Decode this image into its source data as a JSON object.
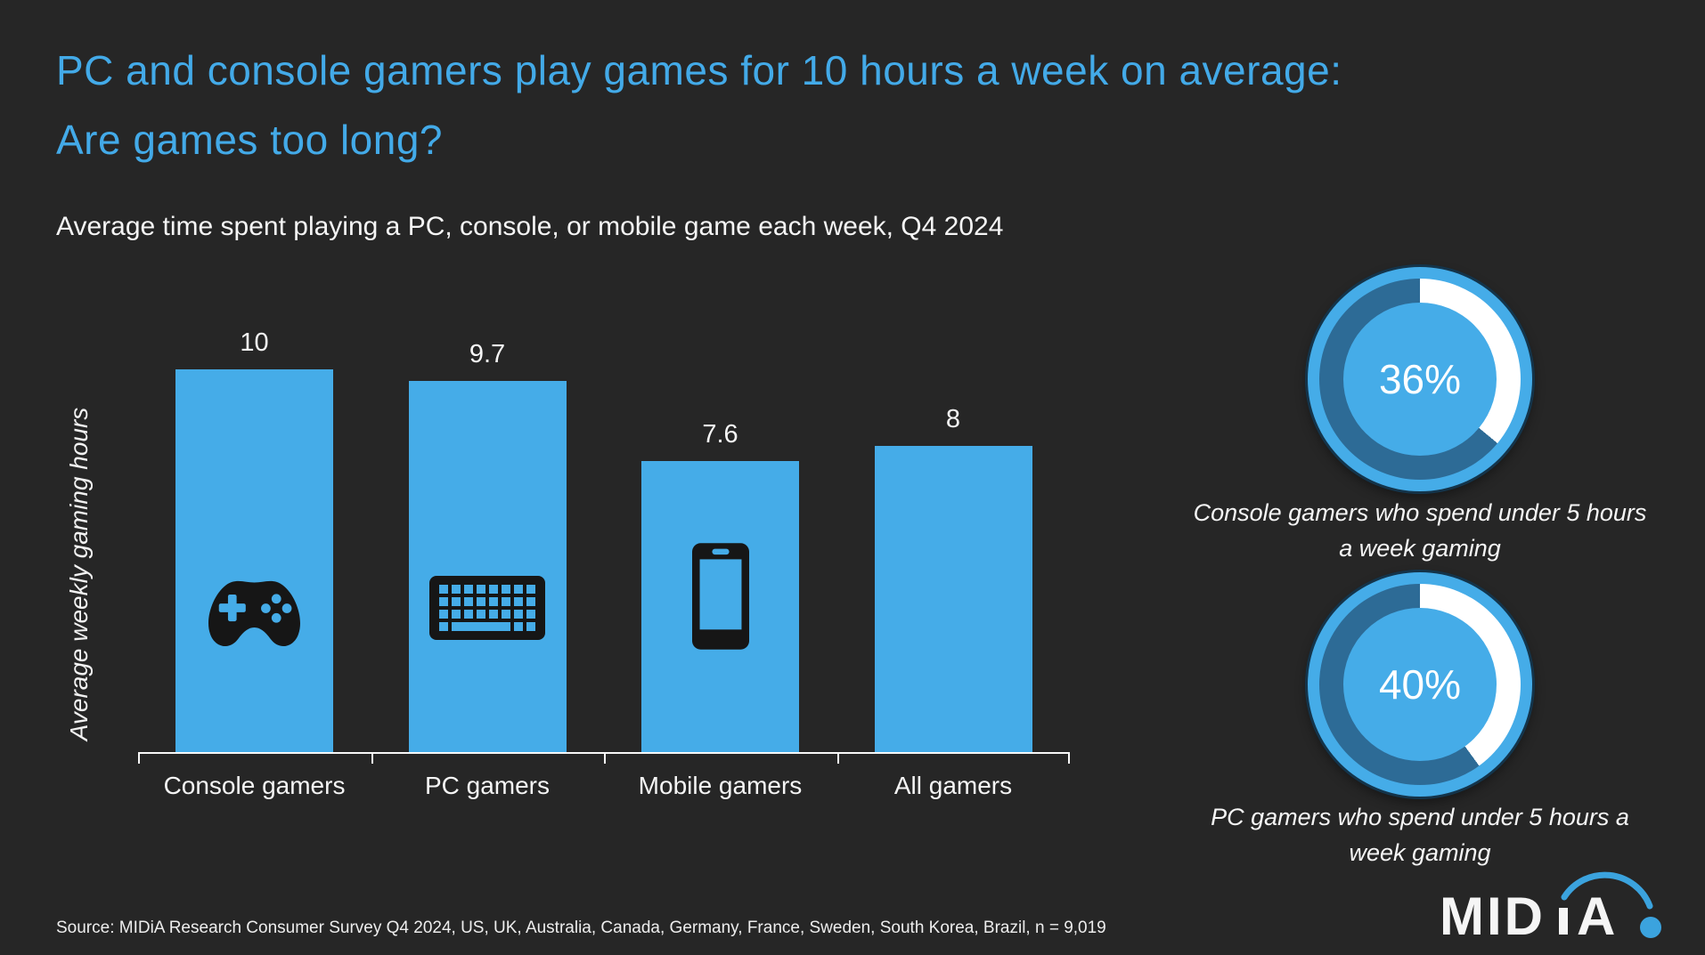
{
  "page": {
    "background": "#262626",
    "accent_blue": "#45ACE8",
    "donut_track_blue": "#2D6B96",
    "text_white": "#F5F5F5"
  },
  "title": {
    "line1": "PC and console gamers play games for 10 hours a week on average:",
    "line2": "Are games too long?"
  },
  "subtitle": "Average time spent playing a PC, console, or mobile game each week, Q4 2024",
  "chart_data": {
    "type": "bar",
    "title": "Average time spent playing a PC, console, or mobile game each week, Q4 2024",
    "categories": [
      "Console gamers",
      "PC gamers",
      "Mobile gamers",
      "All gamers"
    ],
    "values": [
      10,
      9.7,
      7.6,
      8
    ],
    "value_labels": [
      "10",
      "9.7",
      "7.6",
      "8"
    ],
    "xlabel": "",
    "ylabel": "Average weekly gaming hours",
    "ylim": [
      0,
      10
    ],
    "grid": false,
    "legend": false,
    "bar_color": "#45ACE8",
    "bar_icons": [
      "gamepad-icon",
      "keyboard-icon",
      "smartphone-icon",
      null
    ],
    "donuts": [
      {
        "value": 36,
        "value_label": "36%",
        "caption": "Console gamers who spend under 5 hours a week gaming",
        "arc_color": "#FFFFFF",
        "track_color": "#2D6B96",
        "center_color": "#45ACE8"
      },
      {
        "value": 40,
        "value_label": "40%",
        "caption": "PC gamers who spend under 5 hours a week gaming",
        "arc_color": "#FFFFFF",
        "track_color": "#2D6B96",
        "center_color": "#45ACE8"
      }
    ]
  },
  "source": "Source: MIDiA Research Consumer Survey Q4 2024, US, UK, Australia, Canada, Germany, France, Sweden, South Korea, Brazil, n = 9,019",
  "logo": {
    "text": "MIDiA"
  }
}
